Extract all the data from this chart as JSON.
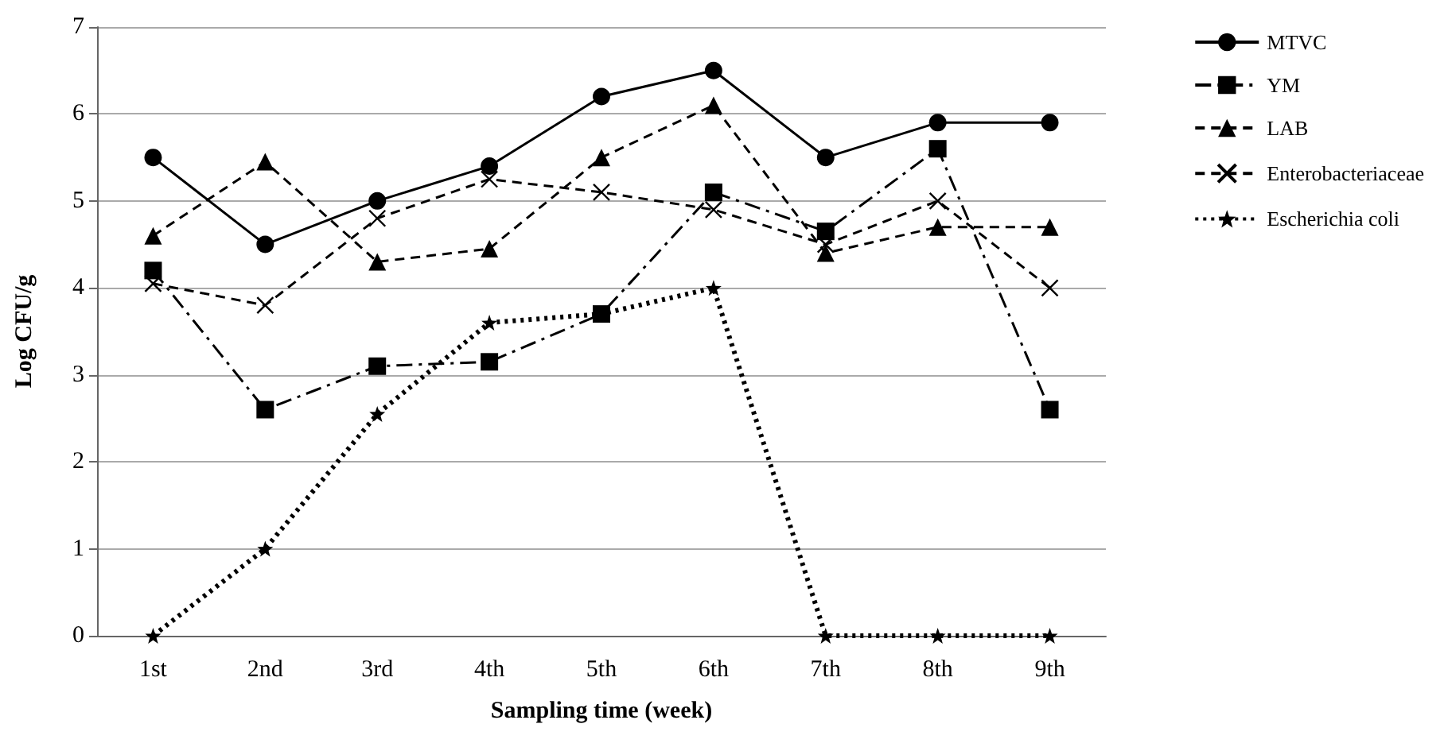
{
  "chart_data": {
    "type": "line",
    "xlabel": "Sampling time (week)",
    "ylabel": "Log CFU/g",
    "categories": [
      "1st",
      "2nd",
      "3rd",
      "4th",
      "5th",
      "6th",
      "7th",
      "8th",
      "9th"
    ],
    "ylim": [
      0,
      7
    ],
    "yticks": [
      0,
      1,
      2,
      3,
      4,
      5,
      6,
      7
    ],
    "grid": "y",
    "legend": "right",
    "series": [
      {
        "name": "MTVC",
        "color": "#000000",
        "marker": "circle",
        "line_style": "solid",
        "values": [
          5.5,
          4.5,
          5.0,
          5.4,
          6.2,
          6.5,
          5.5,
          5.9,
          5.9
        ]
      },
      {
        "name": "YM",
        "color": "#000000",
        "marker": "square",
        "line_style": "dashdot",
        "values": [
          4.2,
          2.6,
          3.1,
          3.15,
          3.7,
          5.1,
          4.65,
          5.6,
          2.6
        ]
      },
      {
        "name": "LAB",
        "color": "#000000",
        "marker": "triangle",
        "line_style": "dashed",
        "values": [
          4.6,
          5.45,
          4.3,
          4.45,
          5.5,
          6.1,
          4.4,
          4.7,
          4.7
        ]
      },
      {
        "name": "Enterobacteriaceae",
        "color": "#000000",
        "marker": "cross",
        "line_style": "dashed",
        "values": [
          4.05,
          3.8,
          4.8,
          5.25,
          5.1,
          4.9,
          4.5,
          5.0,
          4.0
        ]
      },
      {
        "name": "Escherichia coli",
        "color": "#000000",
        "marker": "star",
        "line_style": "dotted",
        "values": [
          0,
          1.0,
          2.55,
          3.6,
          3.7,
          4.0,
          0,
          0,
          0
        ]
      }
    ]
  }
}
